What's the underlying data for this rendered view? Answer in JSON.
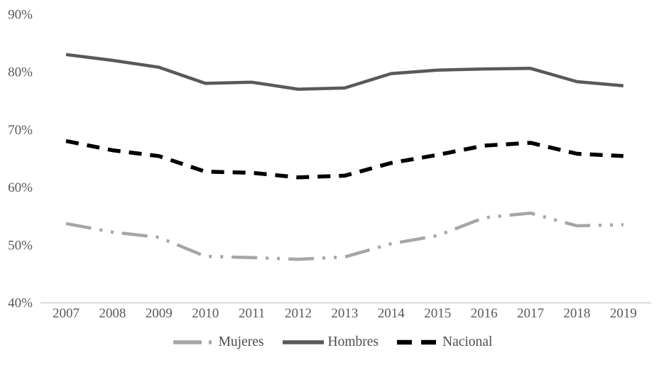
{
  "chart_data": {
    "type": "line",
    "title": "",
    "xlabel": "",
    "ylabel": "",
    "x": [
      "2007",
      "2008",
      "2009",
      "2010",
      "2011",
      "2012",
      "2013",
      "2014",
      "2015",
      "2016",
      "2017",
      "2018",
      "2019"
    ],
    "series": [
      {
        "name": "Mujeres",
        "values": [
          53.7,
          52.2,
          51.3,
          48.0,
          47.8,
          47.5,
          47.9,
          50.2,
          51.6,
          54.7,
          55.5,
          53.3,
          53.5
        ],
        "color": "#a6a6a6",
        "dash": "36 12 4 12 4 12",
        "legend_dash": "40 10 4 10",
        "stroke_width": 4.5
      },
      {
        "name": "Hombres",
        "values": [
          83.0,
          82.0,
          80.8,
          78.0,
          78.2,
          77.0,
          77.2,
          79.7,
          80.3,
          80.5,
          80.6,
          78.3,
          77.6
        ],
        "color": "#595959",
        "dash": "",
        "legend_dash": "",
        "stroke_width": 4.5
      },
      {
        "name": "Nacional",
        "values": [
          68.0,
          66.4,
          65.4,
          62.7,
          62.5,
          61.7,
          62.0,
          64.2,
          65.6,
          67.2,
          67.7,
          65.8,
          65.4
        ],
        "color": "#000000",
        "dash": "18 12",
        "legend_dash": "21 13",
        "stroke_width": 5.5
      }
    ],
    "ylim": [
      40,
      90
    ],
    "yticks": [
      90,
      80,
      70,
      60,
      50,
      40
    ],
    "ytick_labels": [
      "90%",
      "80%",
      "70%",
      "60%",
      "50%",
      "40%"
    ],
    "grid": false,
    "legend_position": "bottom",
    "axis_line_color": "#d9d9d9",
    "tick_label_color": "#595959"
  }
}
